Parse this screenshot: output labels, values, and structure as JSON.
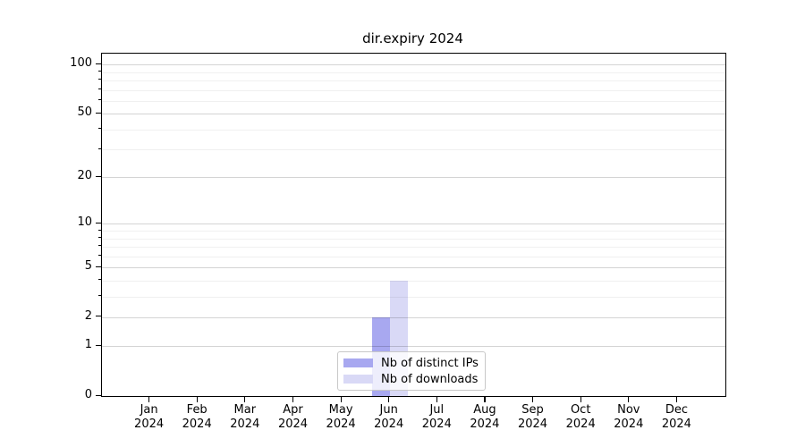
{
  "chart_data": {
    "type": "bar",
    "title": "dir.expiry 2024",
    "year": "2024",
    "categories": [
      "Jan",
      "Feb",
      "Mar",
      "Apr",
      "May",
      "Jun",
      "Jul",
      "Aug",
      "Sep",
      "Oct",
      "Nov",
      "Dec"
    ],
    "series": [
      {
        "name": "Nb of distinct IPs",
        "color": "#a8a8f0",
        "values": [
          0,
          0,
          0,
          0,
          0,
          2,
          0,
          0,
          0,
          0,
          0,
          0
        ]
      },
      {
        "name": "Nb of downloads",
        "color": "#d9d9f6",
        "values": [
          0,
          0,
          0,
          0,
          0,
          4,
          0,
          0,
          0,
          0,
          0,
          0
        ]
      }
    ],
    "xlabel": "",
    "ylabel": "",
    "y_axis": {
      "scale": "log10(value+1)",
      "major_ticks": [
        0,
        1,
        2,
        5,
        10,
        20,
        50,
        100
      ],
      "minor_ticks": [
        3,
        4,
        6,
        7,
        8,
        9,
        30,
        40,
        60,
        70,
        80,
        90
      ],
      "ylim": [
        0,
        110
      ]
    },
    "grid": "on",
    "legend_position": "lower center (inside plot)"
  }
}
